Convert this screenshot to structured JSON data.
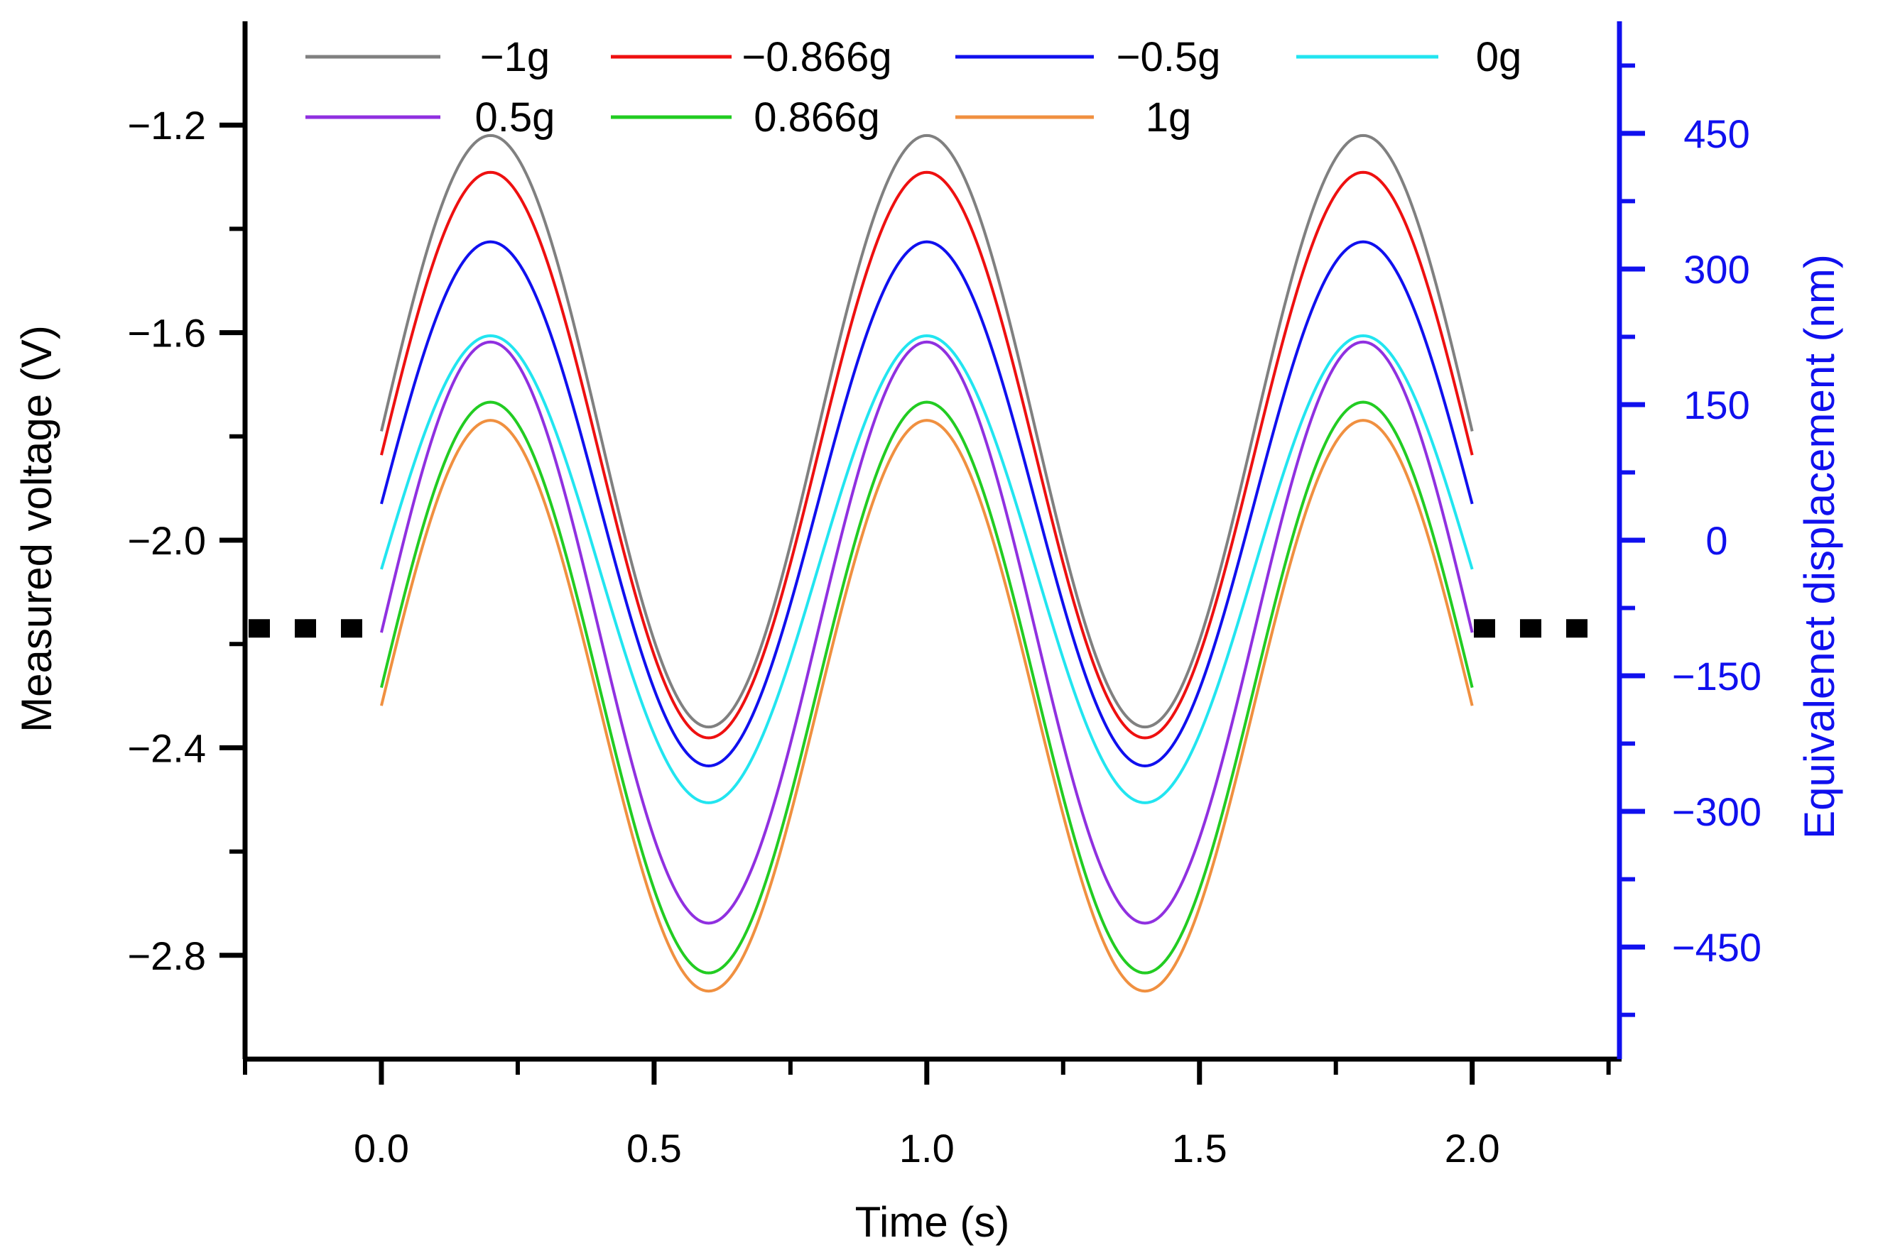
{
  "chart_data": {
    "type": "line",
    "xlabel": "Time (s)",
    "ylabel": "Measured voltage (V)",
    "y2label": "Equivalenet displacement (nm)",
    "xlim": [
      -0.25,
      2.27
    ],
    "ylim": [
      -3.0,
      -1.0
    ],
    "y2lim": [
      -574,
      574
    ],
    "x_ticks": [
      0.0,
      0.5,
      1.0,
      1.5,
      2.0
    ],
    "x_tick_labels": [
      "0.0",
      "0.5",
      "1.0",
      "1.5",
      "2.0"
    ],
    "y_ticks": [
      -1.2,
      -1.6,
      -2.0,
      -2.4,
      -2.8
    ],
    "y_tick_labels": [
      "−1.2",
      "−1.6",
      "−2.0",
      "−2.4",
      "−2.8"
    ],
    "y2_ticks": [
      450,
      300,
      150,
      0,
      -150,
      -300,
      -450
    ],
    "y2_tick_labels": [
      "450",
      "300",
      "150",
      "0",
      "−150",
      "−300",
      "−450"
    ],
    "y2_color": "#1010ee",
    "reference_level": -2.17,
    "x_range": [
      0.0,
      2.0
    ],
    "frequency_hz": 1.25,
    "legend_position": "top",
    "series": [
      {
        "name": "−1g",
        "color": "#808080",
        "center": -1.79,
        "amplitude": 0.57
      },
      {
        "name": "−0.866g",
        "color": "#ee1010",
        "center": -1.836,
        "amplitude": 0.545
      },
      {
        "name": "−0.5g",
        "color": "#1010ee",
        "center": -1.93,
        "amplitude": 0.505
      },
      {
        "name": "0g",
        "color": "#22e5f0",
        "center": -2.056,
        "amplitude": 0.45
      },
      {
        "name": "0.5g",
        "color": "#9030e0",
        "center": -2.178,
        "amplitude": 0.56
      },
      {
        "name": "0.866g",
        "color": "#22cc22",
        "center": -2.284,
        "amplitude": 0.55
      },
      {
        "name": "1g",
        "color": "#f09040",
        "center": -2.319,
        "amplitude": 0.55
      }
    ]
  }
}
